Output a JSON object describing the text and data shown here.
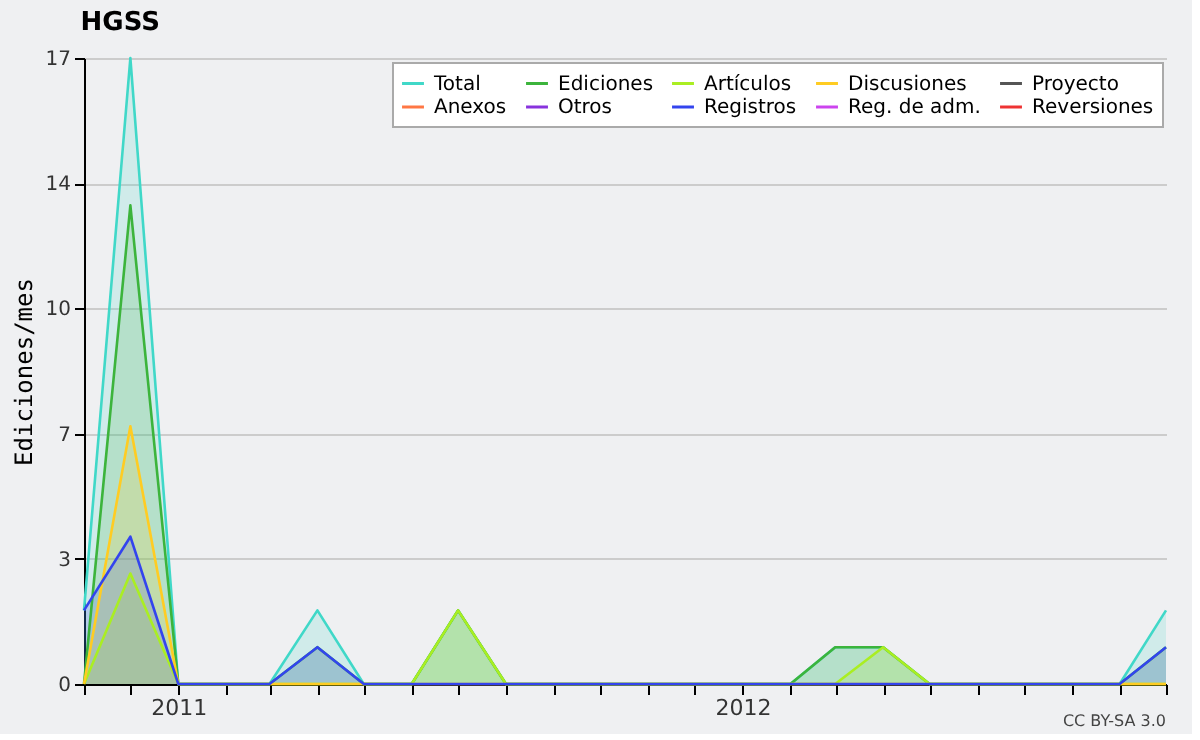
{
  "chart_data": {
    "type": "area",
    "title": "HGSS",
    "ylabel": "Ediciones/mes",
    "annotations": [
      "CC BY-SA 3.0"
    ],
    "x": [
      "2010-11",
      "2010-12",
      "2011-01",
      "2011-02",
      "2011-03",
      "2011-04",
      "2011-05",
      "2011-06",
      "2011-07",
      "2011-08",
      "2011-09",
      "2011-10",
      "2011-11",
      "2011-12",
      "2012-01",
      "2012-02",
      "2012-03",
      "2012-04",
      "2012-05",
      "2012-06",
      "2012-07",
      "2012-08",
      "2012-09",
      "2012-10"
    ],
    "series": [
      {
        "name": "Total",
        "color": "#40d8c8",
        "values": [
          2,
          17,
          0,
          0,
          0,
          2,
          0,
          0,
          2,
          0,
          0,
          0,
          0,
          0,
          0,
          0,
          1,
          1,
          0,
          0,
          0,
          0,
          0,
          2
        ]
      },
      {
        "name": "Ediciones",
        "color": "#3cb43c",
        "values": [
          0,
          13,
          0,
          0,
          0,
          1,
          0,
          0,
          2,
          0,
          0,
          0,
          0,
          0,
          0,
          0,
          1,
          1,
          0,
          0,
          0,
          0,
          0,
          1
        ]
      },
      {
        "name": "Artículos",
        "color": "#aaee22",
        "values": [
          0,
          3,
          0,
          0,
          0,
          0,
          0,
          0,
          2,
          0,
          0,
          0,
          0,
          0,
          0,
          0,
          0,
          1,
          0,
          0,
          0,
          0,
          0,
          0
        ]
      },
      {
        "name": "Discusiones",
        "color": "#ffcc22",
        "values": [
          0,
          7,
          0,
          0,
          0,
          0,
          0,
          0,
          0,
          0,
          0,
          0,
          0,
          0,
          0,
          0,
          0,
          0,
          0,
          0,
          0,
          0,
          0,
          0
        ]
      },
      {
        "name": "Proyecto",
        "color": "#555555",
        "values": [
          null,
          null,
          null,
          null,
          null,
          null,
          null,
          null,
          null,
          null,
          null,
          null,
          null,
          null,
          null,
          null,
          null,
          null,
          null,
          null,
          null,
          null,
          null,
          null
        ]
      },
      {
        "name": "Anexos",
        "color": "#ff7744",
        "values": [
          null,
          null,
          null,
          null,
          null,
          null,
          null,
          null,
          null,
          null,
          null,
          null,
          null,
          null,
          null,
          null,
          null,
          null,
          null,
          null,
          null,
          null,
          null,
          null
        ]
      },
      {
        "name": "Otros",
        "color": "#8833dd",
        "values": [
          null,
          null,
          null,
          null,
          null,
          null,
          null,
          null,
          null,
          null,
          null,
          null,
          null,
          null,
          null,
          null,
          null,
          null,
          null,
          null,
          null,
          null,
          null,
          null
        ]
      },
      {
        "name": "Registros",
        "color": "#3344ee",
        "values": [
          2,
          4,
          0,
          0,
          0,
          1,
          0,
          0,
          0,
          0,
          0,
          0,
          0,
          0,
          0,
          0,
          0,
          0,
          0,
          0,
          0,
          0,
          0,
          1
        ]
      },
      {
        "name": "Reg. de adm.",
        "color": "#cc44ee",
        "values": [
          null,
          null,
          null,
          null,
          null,
          null,
          null,
          null,
          null,
          null,
          null,
          null,
          null,
          null,
          null,
          null,
          null,
          null,
          null,
          null,
          null,
          null,
          null,
          null
        ]
      },
      {
        "name": "Reversiones",
        "color": "#ee3333",
        "values": [
          null,
          null,
          null,
          null,
          null,
          null,
          null,
          null,
          null,
          null,
          null,
          null,
          null,
          null,
          null,
          null,
          null,
          null,
          null,
          null,
          null,
          null,
          null,
          null
        ]
      }
    ],
    "xlim": [
      "2010-11",
      "2012-10"
    ],
    "xticks": [
      {
        "value": "2010-11",
        "label": null
      },
      {
        "value": "2010-12",
        "label": null
      },
      {
        "value": "2011-01",
        "label": "2011"
      },
      {
        "value": "2011-02",
        "label": null
      },
      {
        "value": "2011-03",
        "label": null
      },
      {
        "value": "2011-04",
        "label": null
      },
      {
        "value": "2011-05",
        "label": null
      },
      {
        "value": "2011-06",
        "label": null
      },
      {
        "value": "2011-07",
        "label": null
      },
      {
        "value": "2011-08",
        "label": null
      },
      {
        "value": "2011-09",
        "label": null
      },
      {
        "value": "2011-10",
        "label": null
      },
      {
        "value": "2011-11",
        "label": null
      },
      {
        "value": "2011-12",
        "label": null
      },
      {
        "value": "2012-01",
        "label": "2012"
      },
      {
        "value": "2012-02",
        "label": null
      },
      {
        "value": "2012-03",
        "label": null
      },
      {
        "value": "2012-04",
        "label": null
      },
      {
        "value": "2012-05",
        "label": null
      },
      {
        "value": "2012-06",
        "label": null
      },
      {
        "value": "2012-07",
        "label": null
      },
      {
        "value": "2012-08",
        "label": null
      },
      {
        "value": "2012-09",
        "label": null
      },
      {
        "value": "2012-10",
        "label": null
      }
    ],
    "ylim": [
      0,
      17
    ],
    "yticks": [
      {
        "value": 0,
        "label": "0"
      },
      {
        "value": 3.4,
        "label": "3"
      },
      {
        "value": 6.8,
        "label": "7"
      },
      {
        "value": 10.2,
        "label": "10"
      },
      {
        "value": 13.6,
        "label": "14"
      },
      {
        "value": 17,
        "label": "17"
      }
    ],
    "grid": "y",
    "legend": "top right",
    "marker": "none",
    "line_style": "solid"
  }
}
